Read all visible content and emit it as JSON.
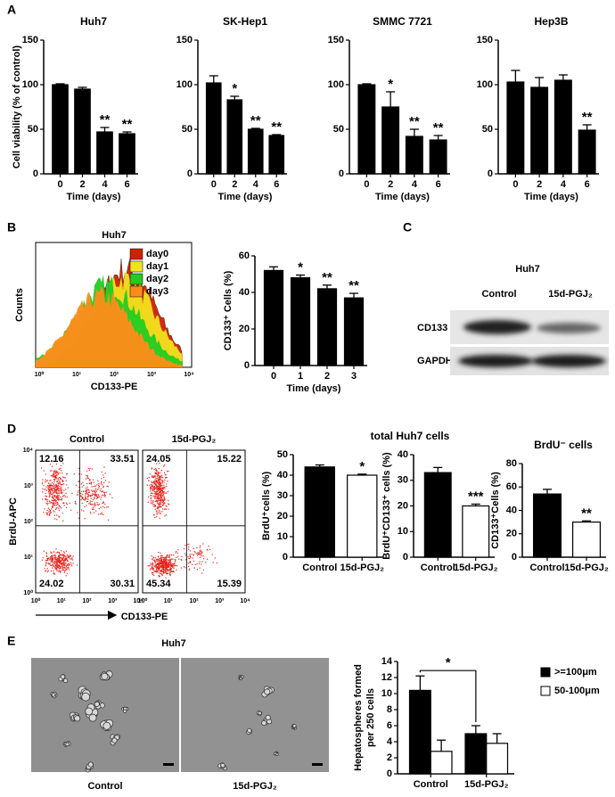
{
  "panel_labels": [
    "A",
    "B",
    "C",
    "D",
    "E"
  ],
  "chart_data": [
    {
      "type": "bar",
      "title": "Huh7",
      "xlabel": "Time (days)",
      "ylabel": "Cell viability (% of control)",
      "categories": [
        "0",
        "2",
        "4",
        "6"
      ],
      "series": [
        {
          "color": "#000000",
          "values": [
            100,
            95,
            47,
            45
          ],
          "errors": [
            1,
            2,
            5,
            2
          ]
        }
      ],
      "annotations": [
        null,
        null,
        "**",
        "**"
      ],
      "ylim": [
        0,
        150
      ],
      "yticks": [
        0,
        50,
        100,
        150
      ]
    },
    {
      "type": "bar",
      "title": "SK-Hep1",
      "xlabel": "Time (days)",
      "categories": [
        "0",
        "2",
        "4",
        "6"
      ],
      "series": [
        {
          "color": "#000000",
          "values": [
            102,
            83,
            50,
            43
          ],
          "errors": [
            8,
            4,
            1,
            1
          ]
        }
      ],
      "annotations": [
        null,
        "*",
        "**",
        "**"
      ],
      "ylim": [
        0,
        150
      ],
      "yticks": [
        0,
        50,
        100,
        150
      ]
    },
    {
      "type": "bar",
      "title": "SMMC 7721",
      "xlabel": "Time (days)",
      "categories": [
        "0",
        "2",
        "4",
        "6"
      ],
      "series": [
        {
          "color": "#000000",
          "values": [
            100,
            75,
            42,
            38
          ],
          "errors": [
            1,
            17,
            8,
            5
          ]
        }
      ],
      "annotations": [
        null,
        "*",
        "**",
        "**"
      ],
      "ylim": [
        0,
        150
      ],
      "yticks": [
        0,
        50,
        100,
        150
      ]
    },
    {
      "type": "bar",
      "title": "Hep3B",
      "xlabel": "Time (days)",
      "categories": [
        "0",
        "2",
        "4",
        "6"
      ],
      "series": [
        {
          "color": "#000000",
          "values": [
            103,
            97,
            105,
            49
          ],
          "errors": [
            13,
            11,
            6,
            6
          ]
        }
      ],
      "annotations": [
        null,
        null,
        null,
        "**"
      ],
      "ylim": [
        0,
        150
      ],
      "yticks": [
        0,
        50,
        100,
        150
      ]
    },
    {
      "type": "bar",
      "xlabel": "Time (days)",
      "ylabel": "CD133⁺ Cells (%)",
      "categories": [
        "0",
        "1",
        "2",
        "3"
      ],
      "series": [
        {
          "color": "#000000",
          "values": [
            52,
            48,
            42,
            37
          ],
          "errors": [
            2,
            1.5,
            2,
            2.5
          ]
        }
      ],
      "annotations": [
        null,
        "*",
        "**",
        "**"
      ],
      "ylim": [
        0,
        60
      ],
      "yticks": [
        0,
        20,
        40,
        60
      ]
    },
    {
      "type": "bar",
      "title": "total Huh7 cells",
      "ylabel": "BrdU⁺cells (%)",
      "categories": [
        "Control",
        "15d-PGJ₂"
      ],
      "series": [
        {
          "colors": [
            "#000000",
            "#ffffff"
          ],
          "values": [
            44,
            40
          ],
          "errors": [
            1,
            0.5
          ]
        }
      ],
      "annotations": [
        null,
        "*"
      ],
      "ylim": [
        0,
        50
      ],
      "yticks": [
        0,
        10,
        20,
        30,
        40,
        50
      ]
    },
    {
      "type": "bar",
      "ylabel": "BrdU⁺CD133⁺ cells (%)",
      "categories": [
        "Control",
        "15d-PGJ₂"
      ],
      "series": [
        {
          "colors": [
            "#000000",
            "#ffffff"
          ],
          "values": [
            33,
            20
          ],
          "errors": [
            2,
            0.7
          ]
        }
      ],
      "annotations": [
        null,
        "***"
      ],
      "ylim": [
        0,
        40
      ],
      "yticks": [
        0,
        10,
        20,
        30,
        40
      ]
    },
    {
      "type": "bar",
      "title": "BrdU⁻ cells",
      "ylabel": "CD133⁺Cells (%)",
      "categories": [
        "Control",
        "15d-PGJ₂"
      ],
      "series": [
        {
          "colors": [
            "#000000",
            "#ffffff"
          ],
          "values": [
            54,
            30
          ],
          "errors": [
            4,
            1
          ]
        }
      ],
      "annotations": [
        null,
        "**"
      ],
      "ylim": [
        0,
        80
      ],
      "yticks": [
        0,
        20,
        40,
        60,
        80
      ]
    },
    {
      "type": "bar",
      "ylabel": [
        "Hepatospheres formed",
        "per 250 cells"
      ],
      "categories": [
        "Control",
        "15d-PGJ₂"
      ],
      "series": [
        {
          "name": ">=100μm",
          "color": "#000000",
          "values": [
            10.4,
            5.0
          ],
          "errors": [
            1.8,
            1.0
          ]
        },
        {
          "name": "50-100μm",
          "color": "#ffffff",
          "values": [
            2.8,
            3.8
          ],
          "errors": [
            1.4,
            1.2
          ]
        }
      ],
      "bracket_label": "*",
      "ylim": [
        0,
        14
      ],
      "yticks": [
        0,
        2,
        4,
        6,
        8,
        10,
        12,
        14
      ]
    }
  ],
  "flow_histogram": {
    "title": "Huh7",
    "xlabel": "CD133-PE",
    "ylabel": "Counts",
    "xticks": [
      "10⁰",
      "10¹",
      "10²",
      "10³",
      "10⁴"
    ],
    "series": [
      {
        "name": "day0",
        "color": "#cc2200"
      },
      {
        "name": "day1",
        "color": "#f2e21e"
      },
      {
        "name": "day2",
        "color": "#22cc22"
      },
      {
        "name": "day3",
        "color": "#ff8c1a"
      }
    ]
  },
  "western_blot": {
    "title": "Huh7",
    "lanes": [
      "Control",
      "15d-PGJ₂"
    ],
    "rows": [
      "CD133",
      "GAPDH"
    ]
  },
  "flow_dotplots": {
    "ylabel": "BrdU-APC",
    "xlabel": "CD133-PE",
    "ticks": [
      "10⁰",
      "10¹",
      "10²",
      "10³",
      "10⁴"
    ],
    "plots": [
      {
        "title": "Control",
        "quadrants": [
          12.16,
          33.51,
          24.02,
          30.31
        ]
      },
      {
        "title": "15d-PGJ₂",
        "quadrants": [
          24.05,
          15.22,
          45.34,
          15.39
        ]
      }
    ]
  },
  "microscopy": {
    "title": "Huh7",
    "labels": [
      "Control",
      "15d-PGJ₂"
    ]
  }
}
